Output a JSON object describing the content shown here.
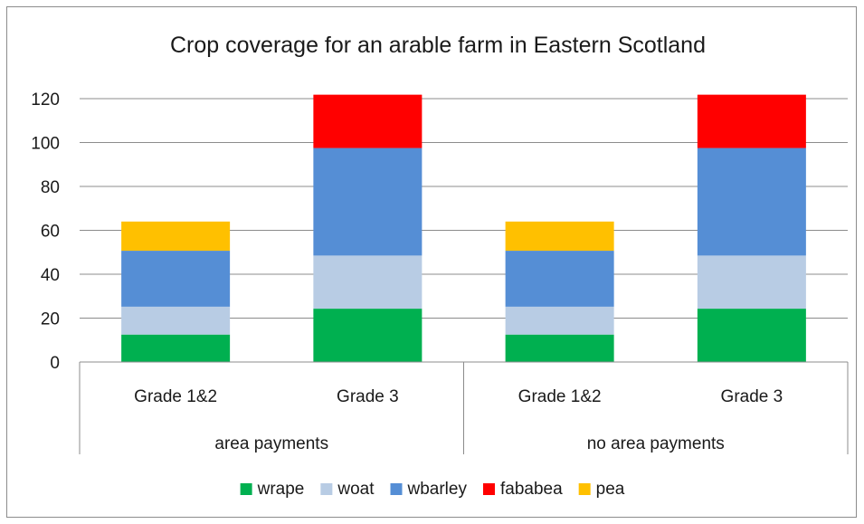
{
  "chart_data": {
    "type": "bar",
    "stacked": true,
    "title": "Crop coverage for an arable farm in Eastern Scotland",
    "xlabel": "",
    "ylabel": "",
    "ylim": [
      0,
      120
    ],
    "yticks": [
      0,
      20,
      40,
      60,
      80,
      100,
      120
    ],
    "grid": true,
    "legend_position": "bottom",
    "categories": [
      "Grade 1&2",
      "Grade 3",
      "Grade 1&2",
      "Grade 3"
    ],
    "groups": [
      {
        "label": "area payments",
        "categories": [
          "Grade 1&2",
          "Grade 3"
        ]
      },
      {
        "label": "no area payments",
        "categories": [
          "Grade 1&2",
          "Grade 3"
        ]
      }
    ],
    "series": [
      {
        "name": "wrape",
        "color": "#00b050",
        "values": [
          12.5,
          24.3,
          12.5,
          24.3
        ]
      },
      {
        "name": "woat",
        "color": "#b8cce4",
        "values": [
          12.7,
          24.2,
          12.7,
          24.2
        ]
      },
      {
        "name": "wbarley",
        "color": "#558ed5",
        "values": [
          25.5,
          49,
          25.5,
          49
        ]
      },
      {
        "name": "fababea",
        "color": "#ff0000",
        "values": [
          0,
          24.3,
          0,
          24.3
        ]
      },
      {
        "name": "pea",
        "color": "#ffc000",
        "values": [
          13.3,
          0,
          13.3,
          0
        ]
      }
    ]
  }
}
